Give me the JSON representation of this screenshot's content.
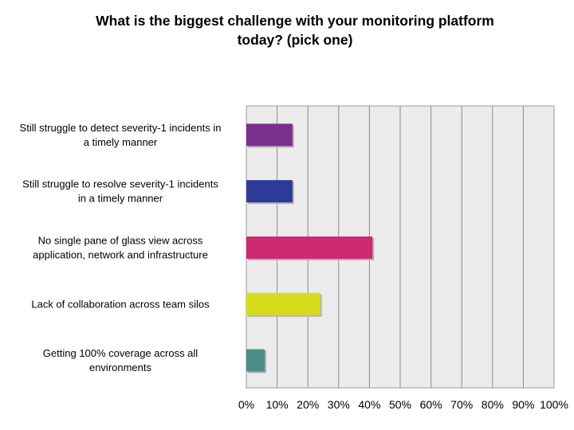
{
  "chart_data": {
    "type": "bar",
    "orientation": "horizontal",
    "title_lines": [
      "What is the biggest challenge with your monitoring platform",
      "today? (pick one)"
    ],
    "categories": [
      [
        "Still struggle to detect severity-1 incidents in",
        "a timely manner"
      ],
      [
        "Still struggle to resolve severity-1 incidents",
        "in a timely manner"
      ],
      [
        "No single pane of glass view across",
        "application, network and infrastructure"
      ],
      [
        "Lack of collaboration across team silos"
      ],
      [
        "Getting 100% coverage across all",
        "environments"
      ]
    ],
    "values": [
      15,
      15,
      41,
      24,
      6
    ],
    "bar_colors": [
      "#7b2f8e",
      "#2e3a97",
      "#cc2a72",
      "#d6dc1c",
      "#4a8c86"
    ],
    "xlim": [
      0,
      100
    ],
    "x_ticks": [
      "0%",
      "10%",
      "20%",
      "30%",
      "40%",
      "50%",
      "60%",
      "70%",
      "80%",
      "90%",
      "100%"
    ],
    "grid": true,
    "plot_background": "#ececec"
  }
}
